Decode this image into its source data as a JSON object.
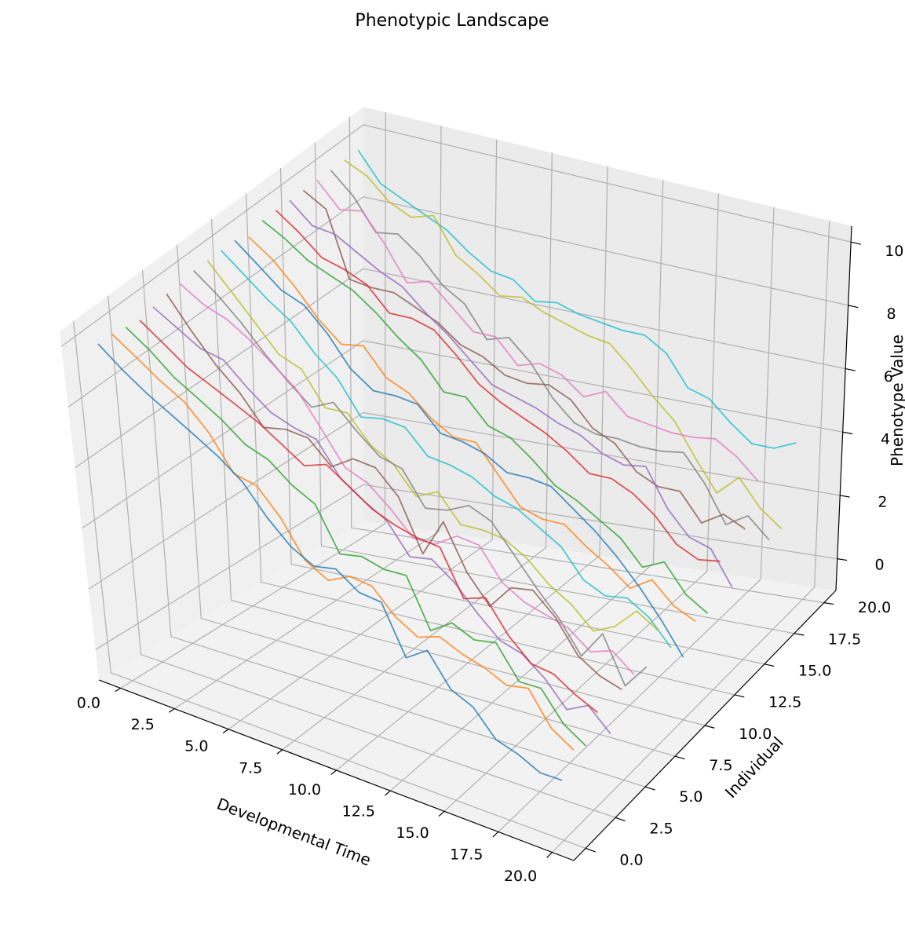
{
  "chart_data": {
    "type": "line",
    "title": "Phenotypic Landscape",
    "xlabel": "Developmental Time",
    "ylabel": "Individual",
    "zlabel": "Phenotype Value",
    "x": [
      0,
      1,
      2,
      3,
      4,
      5,
      6,
      7,
      8,
      9,
      10,
      11,
      12,
      13,
      14,
      15,
      16,
      17,
      18,
      19,
      20
    ],
    "xticks": [
      "0.0",
      "2.5",
      "5.0",
      "7.5",
      "10.0",
      "12.5",
      "15.0",
      "17.5",
      "20.0"
    ],
    "yticks": [
      "0.0",
      "2.5",
      "5.0",
      "7.5",
      "10.0",
      "12.5",
      "15.0",
      "17.5",
      "20.0"
    ],
    "zticks": [
      "0",
      "2",
      "4",
      "6",
      "8",
      "10"
    ],
    "xlim": [
      -1,
      21
    ],
    "ylim": [
      -1,
      21
    ],
    "zlim": [
      -1,
      10.5
    ],
    "grid": true,
    "series_colors": [
      "#1f77b4",
      "#ff7f0e",
      "#2ca02c",
      "#d62728",
      "#9467bd",
      "#8c564b",
      "#e377c2",
      "#7f7f7f",
      "#bcbd22",
      "#17becf"
    ],
    "series": [
      {
        "individual": 0,
        "values": [
          9.9,
          9.2,
          8.6,
          8.1,
          7.6,
          7.1,
          6.5,
          5.6,
          4.9,
          4.5,
          4.6,
          4.1,
          4.0,
          2.6,
          3.0,
          2.1,
          1.8,
          1.1,
          0.9,
          0.6,
          0.6
        ]
      },
      {
        "individual": 1,
        "values": [
          9.9,
          9.3,
          8.7,
          8.2,
          7.4,
          6.3,
          6.1,
          5.3,
          4.2,
          3.8,
          4.1,
          4.0,
          3.3,
          2.9,
          3.1,
          2.8,
          2.6,
          2.3,
          2.4,
          1.5,
          1.1
        ]
      },
      {
        "individual": 2,
        "values": [
          9.8,
          9.2,
          8.5,
          8.0,
          7.5,
          6.9,
          6.6,
          6.0,
          5.6,
          4.3,
          4.4,
          4.2,
          4.2,
          2.8,
          3.2,
          2.9,
          3.0,
          2.1,
          2.1,
          1.3,
          0.9
        ]
      },
      {
        "individual": 3,
        "values": [
          9.7,
          9.1,
          8.5,
          8.1,
          7.7,
          7.3,
          6.8,
          6.3,
          6.5,
          6.0,
          5.5,
          5.2,
          5.0,
          4.9,
          3.6,
          3.8,
          2.9,
          2.3,
          2.2,
          1.8,
          1.5
        ]
      },
      {
        "individual": 4,
        "values": [
          9.8,
          9.3,
          8.8,
          8.6,
          7.9,
          7.3,
          7.0,
          6.8,
          5.8,
          5.3,
          4.9,
          4.0,
          4.1,
          3.6,
          2.9,
          2.3,
          2.1,
          1.6,
          0.9,
          1.2,
          0.6
        ]
      },
      {
        "individual": 5,
        "values": [
          9.9,
          8.9,
          8.0,
          7.3,
          6.4,
          6.5,
          6.4,
          5.7,
          6.1,
          6.0,
          5.3,
          3.8,
          4.9,
          3.6,
          2.8,
          3.5,
          3.6,
          3.0,
          2.1,
          1.7,
          1.5
        ]
      },
      {
        "individual": 6,
        "values": [
          9.9,
          9.4,
          9.1,
          8.6,
          8.0,
          7.4,
          6.4,
          5.4,
          5.1,
          4.5,
          3.8,
          3.8,
          4.2,
          4.1,
          3.2,
          2.8,
          2.6,
          2.4,
          1.9,
          2.1,
          1.6
        ]
      },
      {
        "individual": 7,
        "values": [
          10.0,
          9.4,
          8.7,
          7.9,
          7.2,
          6.6,
          6.9,
          6.2,
          5.6,
          5.4,
          4.4,
          4.5,
          4.8,
          4.5,
          3.7,
          2.9,
          2.2,
          1.3,
          2.1,
          0.8,
          1.5
        ]
      },
      {
        "individual": 8,
        "values": [
          10.0,
          9.2,
          8.4,
          7.6,
          7.3,
          6.3,
          6.3,
          5.5,
          5.1,
          4.3,
          4.6,
          3.8,
          3.8,
          3.7,
          3.3,
          2.7,
          2.3,
          1.7,
          2.0,
          2.6,
          2.2
        ]
      },
      {
        "individual": 9,
        "values": [
          10.0,
          9.4,
          8.8,
          8.3,
          7.5,
          6.9,
          5.9,
          6.0,
          5.9,
          5.2,
          5.1,
          4.9,
          4.5,
          4.3,
          3.9,
          3.5,
          2.7,
          2.4,
          2.5,
          2.1,
          1.4
        ]
      },
      {
        "individual": 10,
        "values": [
          10.0,
          9.4,
          8.8,
          8.5,
          7.8,
          6.9,
          6.4,
          6.4,
          6.3,
          5.6,
          5.5,
          5.3,
          4.9,
          4.9,
          4.8,
          4.3,
          3.8,
          3.2,
          2.5,
          1.7,
          0.8
        ]
      },
      {
        "individual": 11,
        "values": [
          9.8,
          9.3,
          8.6,
          7.8,
          7.2,
          7.3,
          6.5,
          6.2,
          5.6,
          5.2,
          5.2,
          4.4,
          3.6,
          3.4,
          3.4,
          2.9,
          2.5,
          2.0,
          2.4,
          1.8,
          1.5
        ]
      },
      {
        "individual": 12,
        "values": [
          10.0,
          9.6,
          9.1,
          8.8,
          8.5,
          8.0,
          7.4,
          6.9,
          6.1,
          6.1,
          5.4,
          5.2,
          4.7,
          4.1,
          3.8,
          3.4,
          3.0,
          2.3,
          2.6,
          1.8,
          1.4
        ]
      },
      {
        "individual": 13,
        "values": [
          10.0,
          9.5,
          8.9,
          8.7,
          8.4,
          7.7,
          7.7,
          7.5,
          6.9,
          6.2,
          5.8,
          5.5,
          5.2,
          4.8,
          4.3,
          4.3,
          4.0,
          3.5,
          2.8,
          2.5,
          2.6
        ]
      },
      {
        "individual": 14,
        "values": [
          10.0,
          9.4,
          9.3,
          8.9,
          8.5,
          8.2,
          7.6,
          7.1,
          6.5,
          5.9,
          5.7,
          5.5,
          5.2,
          5.0,
          4.6,
          4.4,
          4.5,
          3.4,
          2.7,
          2.5,
          1.5
        ]
      },
      {
        "individual": 15,
        "values": [
          10.0,
          9.6,
          7.7,
          7.6,
          7.6,
          7.3,
          7.0,
          6.5,
          6.3,
          5.9,
          5.8,
          5.9,
          5.6,
          4.9,
          4.6,
          3.9,
          3.6,
          3.6,
          2.8,
          3.2,
          2.9
        ]
      },
      {
        "individual": 16,
        "values": [
          10.0,
          9.3,
          9.4,
          8.6,
          7.6,
          7.8,
          7.2,
          6.6,
          6.6,
          5.9,
          6.1,
          5.9,
          5.4,
          5.7,
          5.1,
          5.0,
          4.9,
          4.9,
          5.0,
          4.6,
          4.0
        ]
      },
      {
        "individual": 17,
        "values": [
          10.0,
          9.4,
          8.5,
          8.6,
          8.1,
          7.4,
          7.0,
          6.1,
          6.3,
          5.7,
          4.8,
          4.2,
          4.0,
          4.0,
          3.9,
          3.9,
          4.0,
          3.2,
          2.1,
          2.5,
          1.9
        ]
      },
      {
        "individual": 18,
        "values": [
          10.0,
          9.7,
          9.1,
          8.8,
          9.0,
          8.0,
          7.6,
          7.1,
          7.2,
          6.9,
          6.7,
          6.5,
          6.4,
          5.8,
          5.1,
          4.5,
          3.5,
          2.6,
          3.2,
          2.4,
          1.9
        ]
      },
      {
        "individual": 19,
        "values": [
          10.0,
          9.2,
          8.9,
          8.6,
          8.3,
          7.8,
          7.4,
          7.3,
          6.8,
          6.9,
          6.7,
          6.6,
          6.5,
          6.5,
          6.1,
          5.2,
          5.0,
          4.4,
          3.9,
          3.9,
          4.2
        ]
      }
    ]
  }
}
